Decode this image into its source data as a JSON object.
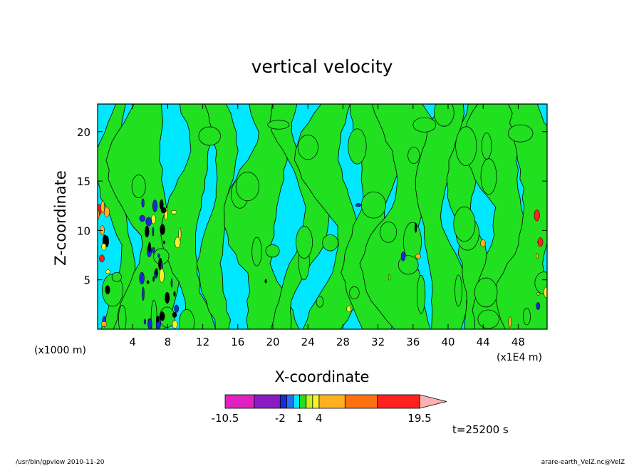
{
  "chart_data": {
    "type": "heatmap",
    "title": "vertical velocity",
    "xlabel": "X-coordinate",
    "ylabel": "Z-coordinate",
    "x_unit_left": "(x1000 m)",
    "x_unit_right": "(x1E4 m)",
    "xlim": [
      0,
      51.3
    ],
    "ylim": [
      0,
      22.8
    ],
    "x_ticks": [
      {
        "v": 4,
        "label": "4"
      },
      {
        "v": 8,
        "label": "8"
      },
      {
        "v": 12,
        "label": "12"
      },
      {
        "v": 16,
        "label": "16"
      },
      {
        "v": 20,
        "label": "20"
      },
      {
        "v": 24,
        "label": "24"
      },
      {
        "v": 28,
        "label": "28"
      },
      {
        "v": 32,
        "label": "32"
      },
      {
        "v": 36,
        "label": "36"
      },
      {
        "v": 40,
        "label": "40"
      },
      {
        "v": 44,
        "label": "44"
      },
      {
        "v": 48,
        "label": "48"
      }
    ],
    "y_ticks": [
      {
        "v": 5,
        "label": "5"
      },
      {
        "v": 10,
        "label": "10"
      },
      {
        "v": 15,
        "label": "15"
      },
      {
        "v": 20,
        "label": "20"
      }
    ],
    "colorbar": {
      "levels": [
        -10.5,
        -6,
        -2,
        -1,
        0,
        1,
        2,
        3,
        4,
        8,
        13,
        19.5
      ],
      "colors": [
        "#e020c0",
        "#8a1ac4",
        "#1a2ad8",
        "#2a6ef0",
        "#00e8ff",
        "#20e020",
        "#c8f020",
        "#f8f030",
        "#ffb020",
        "#ff7010",
        "#ff2020",
        "#ff8080"
      ],
      "overflow_color": "#ffb0b0",
      "tick_labels": [
        {
          "v": -10.5,
          "label": "-10.5"
        },
        {
          "v": -2,
          "label": "-2"
        },
        {
          "v": 1,
          "label": "1"
        },
        {
          "v": 4,
          "label": "4"
        },
        {
          "v": 19.5,
          "label": "19.5"
        }
      ]
    },
    "dominant_fields": {
      "background": "#00e8ff",
      "positive_bands": "#20e020"
    },
    "time_label": "t=25200 s"
  },
  "footer": {
    "left": "/usr/bin/gpview   2010-11-20",
    "right": "arare-earth_VelZ.nc@VelZ"
  }
}
